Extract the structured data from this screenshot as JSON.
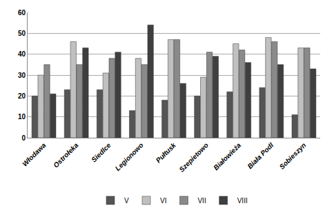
{
  "chart_data": {
    "type": "bar",
    "categories": [
      "Włodawa",
      "Ostrołeka",
      "Siedlce",
      "Legionowo",
      "Pułtusk",
      "Szepietowo",
      "Białowieża",
      "Biała Podl",
      "Sobieszyn"
    ],
    "series": [
      {
        "name": "V",
        "color": "#555555",
        "values": [
          20,
          23,
          23,
          13,
          18,
          20,
          22,
          24,
          11
        ]
      },
      {
        "name": "VI",
        "color": "#c0c0c0",
        "values": [
          30,
          46,
          31,
          38,
          47,
          29,
          45,
          48,
          43
        ]
      },
      {
        "name": "VII",
        "color": "#8a8a8a",
        "values": [
          35,
          35,
          38,
          35,
          47,
          41,
          42,
          46,
          43
        ]
      },
      {
        "name": "VIII",
        "color": "#3f3f3f",
        "values": [
          21,
          43,
          41,
          54,
          26,
          39,
          36,
          35,
          33
        ]
      }
    ],
    "ylim": [
      0,
      60
    ],
    "yticks": [
      0,
      10,
      20,
      30,
      40,
      50,
      60
    ],
    "grid": true,
    "legend": "bottom"
  }
}
